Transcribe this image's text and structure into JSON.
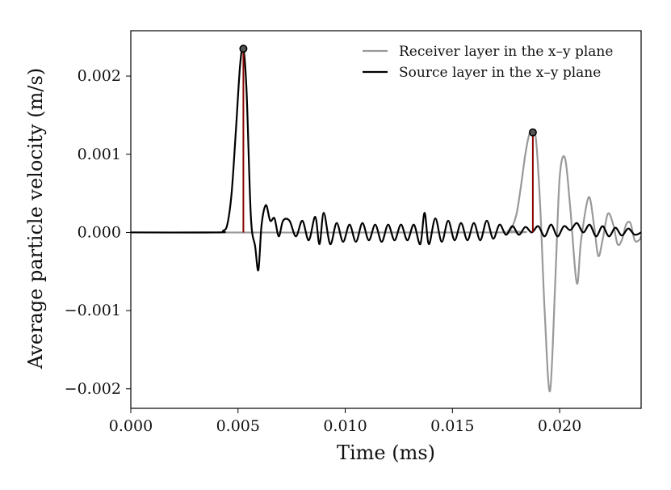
{
  "chart_data": {
    "type": "line",
    "title": "",
    "xlabel": "Time (ms)",
    "ylabel": "Average particle velocity (m/s)",
    "xlim": [
      0.0,
      0.0238
    ],
    "ylim": [
      -0.00225,
      0.00258
    ],
    "x_ticks": [
      0.0,
      0.005,
      0.01,
      0.015,
      0.02
    ],
    "x_tick_labels": [
      "0.000",
      "0.005",
      "0.010",
      "0.015",
      "0.020"
    ],
    "y_ticks": [
      0.002,
      0.001,
      0.0,
      -0.001,
      -0.002
    ],
    "y_tick_labels": [
      "0.002",
      "0.001",
      "0.000",
      "−0.001",
      "−0.002"
    ],
    "grid": false,
    "legend_position": "top-right",
    "series": [
      {
        "name": "Receiver layer in the x–y plane",
        "color": "#999999",
        "x": [
          0.0,
          0.017,
          0.0176,
          0.0178,
          0.018,
          0.0182,
          0.0184,
          0.0186,
          0.01875,
          0.0189,
          0.0191,
          0.0193,
          0.01955,
          0.0198,
          0.02,
          0.02025,
          0.0205,
          0.0208,
          0.021,
          0.02135,
          0.0216,
          0.0218,
          0.022,
          0.02225,
          0.0225,
          0.0227,
          0.0229,
          0.0231,
          0.0233,
          0.0235,
          0.0237,
          0.0238
        ],
        "y": [
          0.0,
          0.0,
          2e-05,
          8e-05,
          0.00025,
          0.0006,
          0.001,
          0.00127,
          0.00128,
          0.00118,
          0.0003,
          -0.001,
          -0.00203,
          -0.0006,
          0.0007,
          0.00095,
          0.0003,
          -0.00065,
          -0.0001,
          0.00045,
          0.0001,
          -0.0003,
          -0.0001,
          0.00024,
          0.0001,
          -0.00015,
          -0.0001,
          0.0001,
          0.00012,
          -0.0001,
          -0.0001,
          -5e-05
        ]
      },
      {
        "name": "Source layer in the x–y plane",
        "color": "#000000",
        "x": [
          0.0,
          0.004,
          0.0043,
          0.0045,
          0.0047,
          0.0049,
          0.0051,
          0.00525,
          0.0054,
          0.0056,
          0.0058,
          0.00595,
          0.0061,
          0.0063,
          0.0065,
          0.0067,
          0.0069,
          0.0071,
          0.0074,
          0.0077,
          0.008,
          0.0083,
          0.0086,
          0.0088,
          0.009,
          0.0093,
          0.0096,
          0.0099,
          0.0102,
          0.0105,
          0.0108,
          0.0111,
          0.0114,
          0.0117,
          0.012,
          0.0123,
          0.0126,
          0.0129,
          0.0132,
          0.0135,
          0.0137,
          0.0139,
          0.0142,
          0.0145,
          0.0148,
          0.0151,
          0.0154,
          0.0157,
          0.016,
          0.0163,
          0.0166,
          0.0169,
          0.0172,
          0.0175,
          0.0178,
          0.0181,
          0.0184,
          0.0187,
          0.019,
          0.0193,
          0.0196,
          0.0199,
          0.0202,
          0.0205,
          0.0208,
          0.0211,
          0.0214,
          0.0217,
          0.022,
          0.0223,
          0.0226,
          0.0229,
          0.0232,
          0.0235,
          0.0238
        ],
        "y": [
          0.0,
          0.0,
          2e-05,
          0.0001,
          0.0005,
          0.0013,
          0.00215,
          0.00235,
          0.0018,
          0.0002,
          -0.00018,
          -0.00048,
          0.0001,
          0.00035,
          0.00015,
          0.00018,
          -5e-05,
          0.00015,
          0.00015,
          -5e-05,
          0.00015,
          -0.0001,
          0.0002,
          -0.00015,
          0.00025,
          -0.00015,
          0.00012,
          -0.00012,
          0.0001,
          -0.00012,
          0.00012,
          -0.0001,
          0.0001,
          -0.00012,
          0.0001,
          -0.0001,
          0.0001,
          -0.0001,
          0.0001,
          -0.00015,
          0.00025,
          -0.00015,
          0.00018,
          -0.00012,
          0.00015,
          -0.0001,
          0.00012,
          -0.0001,
          0.00012,
          -0.0001,
          0.00015,
          -8e-05,
          0.0001,
          -3e-05,
          8e-05,
          -3e-05,
          7e-05,
          0.0,
          8e-05,
          -5e-05,
          0.0001,
          -5e-05,
          8e-05,
          3e-05,
          0.00012,
          0.0,
          0.0001,
          -5e-05,
          8e-05,
          -5e-05,
          6e-05,
          -4e-05,
          5e-05,
          -3e-05,
          0.0
        ]
      }
    ],
    "peaks": [
      {
        "x": 0.00525,
        "y": 0.00235,
        "color": "#8b0000"
      },
      {
        "x": 0.01875,
        "y": 0.00128,
        "color": "#8b0000"
      }
    ]
  }
}
